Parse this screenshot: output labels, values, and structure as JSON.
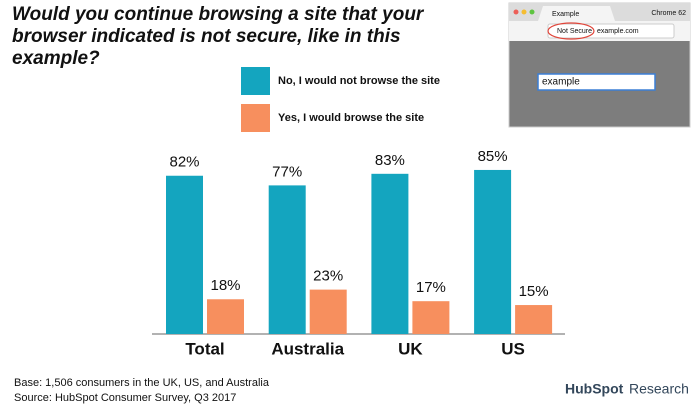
{
  "chart_data": {
    "type": "bar",
    "title": "Would you continue browsing a site that your browser indicated is not secure, like in this example?",
    "categories": [
      "Total",
      "Australia",
      "UK",
      "US"
    ],
    "series": [
      {
        "name": "No, I would not browse the site",
        "color": "#14a5bf",
        "values": [
          82,
          77,
          83,
          85
        ],
        "value_labels": [
          "82%",
          "77%",
          "83%",
          "85%"
        ]
      },
      {
        "name": "Yes, I would browse the site",
        "color": "#f78f5e",
        "values": [
          18,
          23,
          17,
          15
        ],
        "value_labels": [
          "18%",
          "23%",
          "17%",
          "15%"
        ]
      }
    ],
    "footnotes": [
      "Base: 1,506 consumers in the UK, US, and Australia",
      "Source: HubSpot Consumer Survey, Q3 2017"
    ]
  },
  "branding": {
    "logo": "HubSpot",
    "suffix": "Research"
  },
  "inset": {
    "tab": "Example",
    "browser": "Chrome 62",
    "security": "Not Secure",
    "url": "example.com",
    "input": "example"
  }
}
